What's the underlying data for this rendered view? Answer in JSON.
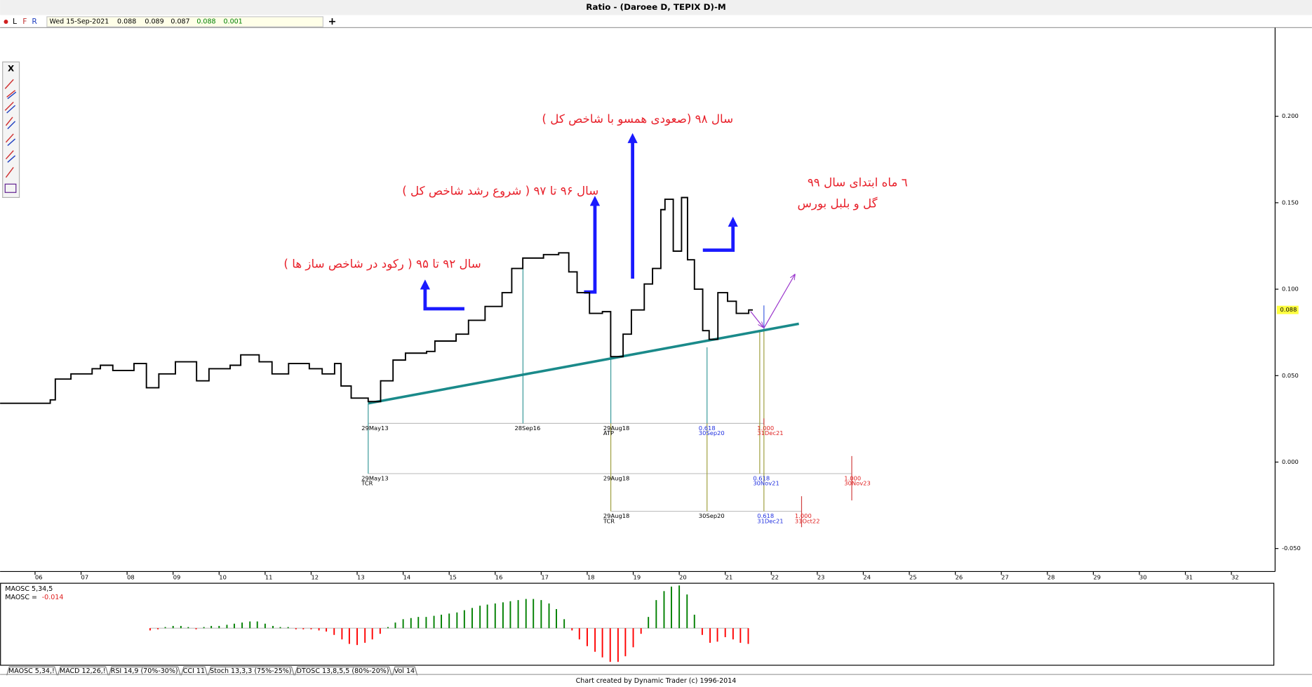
{
  "window": {
    "title": "Ratio - (Daroee D, TEPIX D)-M",
    "toolbar": {
      "date": "Wed 15-Sep-2021",
      "open": "0.088",
      "high": "0.089",
      "low": "0.087",
      "close": "0.088",
      "change": "0.001"
    },
    "tools_close": "X",
    "tabs": [
      "MAOSC 5,34,!",
      "MACD 12,26,!",
      "RSI 14,9 (70%-30%)",
      "CCI 11",
      "Stoch 13,3,3 (75%-25%)",
      "DTOSC 13,8,5,5 (80%-20%)",
      "Vol 14"
    ],
    "footer": "Chart created by Dynamic Trader  (c)  1996-2014"
  },
  "chart_data": [
    {
      "type": "line",
      "x": [
        5.24,
        6.33,
        6.44,
        6.78,
        7.24,
        7.42,
        7.69,
        8.15,
        8.42,
        8.69,
        9.05,
        9.51,
        9.78,
        10.24,
        10.47,
        10.87,
        11.15,
        11.51,
        11.96,
        12.24,
        12.51,
        12.65,
        12.87,
        13.24,
        13.51,
        13.78,
        14.05,
        14.51,
        14.69,
        15.15,
        15.42,
        15.78,
        16.15,
        16.36,
        16.6,
        17.05,
        17.38,
        17.6,
        17.78,
        18.05,
        18.33,
        18.51,
        18.78,
        18.96,
        19.24,
        19.42,
        19.6,
        19.69,
        19.87,
        20.05,
        20.18,
        20.33,
        20.51,
        20.65,
        20.84,
        21.05,
        21.24,
        21.51,
        21.6
      ],
      "series": [
        {
          "color": "#000000",
          "values": [
            0.034,
            0.036,
            0.048,
            0.051,
            0.054,
            0.056,
            0.053,
            0.057,
            0.043,
            0.051,
            0.058,
            0.047,
            0.054,
            0.056,
            0.062,
            0.058,
            0.051,
            0.057,
            0.054,
            0.051,
            0.057,
            0.044,
            0.037,
            0.035,
            0.047,
            0.059,
            0.063,
            0.064,
            0.07,
            0.074,
            0.082,
            0.09,
            0.098,
            0.112,
            0.118,
            0.12,
            0.121,
            0.11,
            0.098,
            0.086,
            0.087,
            0.061,
            0.074,
            0.088,
            0.103,
            0.112,
            0.146,
            0.152,
            0.122,
            0.153,
            0.117,
            0.1,
            0.076,
            0.071,
            0.098,
            0.093,
            0.086,
            0.088,
            0.088
          ]
        }
      ],
      "last_value": {
        "value": 0.088,
        "label": "0.088"
      },
      "trendline": {
        "x": [
          13.24,
          22.6
        ],
        "values": [
          0.034,
          0.08
        ],
        "color": "#1a8a8a"
      },
      "xlim": [
        5.24,
        32.95
      ],
      "ylim": [
        -0.0633,
        0.2508
      ],
      "xticks": [
        {
          "value": 6,
          "label": "06"
        },
        {
          "value": 7,
          "label": "07"
        },
        {
          "value": 8,
          "label": "08"
        },
        {
          "value": 9,
          "label": "09"
        },
        10,
        11,
        12,
        13,
        14,
        15,
        16,
        17,
        18,
        19,
        20,
        21,
        22,
        23,
        24,
        25,
        26,
        27,
        28,
        29,
        30,
        31,
        32
      ],
      "yticks": [
        {
          "value": -0.05,
          "label": "-0.050"
        },
        {
          "value": 0,
          "label": "0.000"
        },
        {
          "value": 0.05,
          "label": "0.050"
        },
        {
          "value": 0.1,
          "label": "0.100"
        },
        {
          "value": 0.15,
          "label": "0.150"
        },
        {
          "value": 0.2,
          "label": "0.200"
        }
      ],
      "annotations": [
        [
          "سال ۹۸ (صعودی همسو با شاخص کل )"
        ],
        [
          "سال ۹۶ تا ۹۷ ( شروع رشد شاخص کل )"
        ],
        [
          "سال ۹۲ تا ۹۵ ( رکود در شاخص ساز ها )"
        ],
        [
          "٦ ماه ابتدای سال ۹۹",
          "گل و بلبل بورس"
        ]
      ],
      "time_labels": [
        [
          "29May13"
        ],
        [
          "28Sep16"
        ],
        [
          "29Aug18",
          "ATP"
        ],
        [
          "0.618",
          "30Sep20"
        ],
        [
          "1.000",
          "31Dec21"
        ],
        [
          "29May13",
          "TCR"
        ],
        [
          "29Aug18"
        ],
        [
          "0.618",
          "30Nov21"
        ],
        [
          "1.000",
          "30Nov23"
        ],
        [
          "29Aug18",
          "TCR"
        ],
        [
          "30Sep20"
        ],
        [
          "0.618",
          "31Dec21"
        ],
        [
          "1.000",
          "31Oct22"
        ]
      ]
    },
    {
      "type": "bar",
      "labels": [
        "MAOSC 5,34,5",
        "MAOSC = "
      ],
      "current": "-0.014",
      "x": [
        8.5,
        8.67,
        8.83,
        9,
        9.17,
        9.33,
        9.5,
        9.67,
        9.83,
        10,
        10.17,
        10.33,
        10.5,
        10.67,
        10.83,
        11,
        11.17,
        11.33,
        11.5,
        11.67,
        11.83,
        12,
        12.17,
        12.33,
        12.5,
        12.67,
        12.83,
        13,
        13.17,
        13.33,
        13.5,
        13.67,
        13.83,
        14,
        14.17,
        14.33,
        14.5,
        14.67,
        14.83,
        15,
        15.17,
        15.33,
        15.5,
        15.67,
        15.83,
        16,
        16.17,
        16.33,
        16.5,
        16.67,
        16.83,
        17,
        17.17,
        17.33,
        17.5,
        17.67,
        17.83,
        18,
        18.17,
        18.33,
        18.5,
        18.67,
        18.83,
        19,
        19.17,
        19.33,
        19.5,
        19.67,
        19.83,
        20,
        20.17,
        20.33,
        20.5,
        20.67,
        20.83,
        21,
        21.17,
        21.33,
        21.5
      ],
      "values": [
        -0.002,
        -0.001,
        0.001,
        0.002,
        0.002,
        0.001,
        -0.001,
        0.001,
        0.002,
        0.002,
        0.003,
        0.004,
        0.005,
        0.006,
        0.006,
        0.004,
        0.002,
        0.001,
        0.001,
        -0.001,
        -0.001,
        -0.001,
        -0.002,
        -0.003,
        -0.006,
        -0.01,
        -0.014,
        -0.015,
        -0.013,
        -0.01,
        -0.005,
        0.001,
        0.005,
        0.008,
        0.009,
        0.01,
        0.01,
        0.011,
        0.012,
        0.013,
        0.014,
        0.016,
        0.018,
        0.02,
        0.021,
        0.022,
        0.023,
        0.024,
        0.025,
        0.026,
        0.026,
        0.025,
        0.022,
        0.017,
        0.008,
        -0.002,
        -0.01,
        -0.016,
        -0.021,
        -0.026,
        -0.03,
        -0.03,
        -0.025,
        -0.017,
        -0.005,
        0.01,
        0.025,
        0.033,
        0.037,
        0.038,
        0.03,
        0.012,
        -0.006,
        -0.013,
        -0.012,
        -0.008,
        -0.01,
        -0.013,
        -0.014
      ],
      "colors": {
        "positive": "#008000",
        "negative": "#ff0000"
      },
      "xlim": [
        5.24,
        32.95
      ],
      "ylim": [
        -0.033,
        0.04
      ]
    }
  ]
}
